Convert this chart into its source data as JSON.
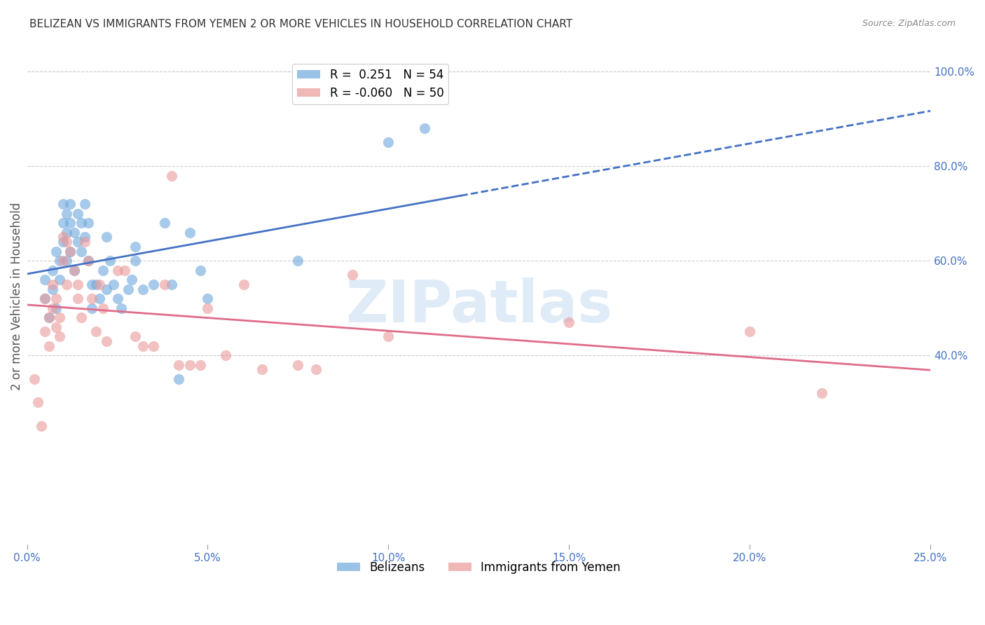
{
  "title": "BELIZEAN VS IMMIGRANTS FROM YEMEN 2 OR MORE VEHICLES IN HOUSEHOLD CORRELATION CHART",
  "source": "Source: ZipAtlas.com",
  "ylabel": "2 or more Vehicles in Household",
  "x_min": 0.0,
  "x_max": 0.25,
  "y_min": 0.0,
  "y_max": 1.05,
  "right_yticks": [
    0.4,
    0.6,
    0.8,
    1.0
  ],
  "right_yticklabels": [
    "40.0%",
    "60.0%",
    "80.0%",
    "100.0%"
  ],
  "xticks": [
    0.0,
    0.05,
    0.1,
    0.15,
    0.2,
    0.25
  ],
  "xticklabels": [
    "0.0%",
    "5.0%",
    "10.0%",
    "15.0%",
    "20.0%",
    "25.0%"
  ],
  "legend_R_blue": "0.251",
  "legend_N_blue": "54",
  "legend_R_pink": "-0.060",
  "legend_N_pink": "50",
  "blue_color": "#6fa8dc",
  "pink_color": "#ea9999",
  "trend_blue_color": "#4472c4",
  "trend_pink_color": "#e06c8a",
  "watermark": "ZIPatlas",
  "watermark_color": "#c0d8f0",
  "blue_scatter_x": [
    0.005,
    0.005,
    0.006,
    0.007,
    0.007,
    0.008,
    0.008,
    0.009,
    0.009,
    0.01,
    0.01,
    0.01,
    0.011,
    0.011,
    0.011,
    0.012,
    0.012,
    0.012,
    0.013,
    0.013,
    0.014,
    0.014,
    0.015,
    0.015,
    0.016,
    0.016,
    0.017,
    0.017,
    0.018,
    0.018,
    0.019,
    0.02,
    0.021,
    0.022,
    0.022,
    0.023,
    0.024,
    0.025,
    0.026,
    0.028,
    0.029,
    0.03,
    0.03,
    0.032,
    0.035,
    0.038,
    0.04,
    0.042,
    0.045,
    0.048,
    0.05,
    0.075,
    0.1,
    0.11
  ],
  "blue_scatter_y": [
    0.56,
    0.52,
    0.48,
    0.58,
    0.54,
    0.62,
    0.5,
    0.6,
    0.56,
    0.72,
    0.68,
    0.64,
    0.7,
    0.66,
    0.6,
    0.72,
    0.68,
    0.62,
    0.66,
    0.58,
    0.7,
    0.64,
    0.68,
    0.62,
    0.72,
    0.65,
    0.68,
    0.6,
    0.55,
    0.5,
    0.55,
    0.52,
    0.58,
    0.54,
    0.65,
    0.6,
    0.55,
    0.52,
    0.5,
    0.54,
    0.56,
    0.63,
    0.6,
    0.54,
    0.55,
    0.68,
    0.55,
    0.35,
    0.66,
    0.58,
    0.52,
    0.6,
    0.85,
    0.88
  ],
  "pink_scatter_x": [
    0.002,
    0.003,
    0.004,
    0.005,
    0.005,
    0.006,
    0.006,
    0.007,
    0.007,
    0.008,
    0.008,
    0.009,
    0.009,
    0.01,
    0.01,
    0.011,
    0.011,
    0.012,
    0.013,
    0.014,
    0.014,
    0.015,
    0.016,
    0.017,
    0.018,
    0.019,
    0.02,
    0.021,
    0.022,
    0.025,
    0.027,
    0.03,
    0.032,
    0.035,
    0.038,
    0.04,
    0.042,
    0.045,
    0.048,
    0.05,
    0.055,
    0.06,
    0.065,
    0.075,
    0.08,
    0.09,
    0.1,
    0.15,
    0.2,
    0.22
  ],
  "pink_scatter_y": [
    0.35,
    0.3,
    0.25,
    0.52,
    0.45,
    0.48,
    0.42,
    0.55,
    0.5,
    0.52,
    0.46,
    0.48,
    0.44,
    0.65,
    0.6,
    0.64,
    0.55,
    0.62,
    0.58,
    0.52,
    0.55,
    0.48,
    0.64,
    0.6,
    0.52,
    0.45,
    0.55,
    0.5,
    0.43,
    0.58,
    0.58,
    0.44,
    0.42,
    0.42,
    0.55,
    0.78,
    0.38,
    0.38,
    0.38,
    0.5,
    0.4,
    0.55,
    0.37,
    0.38,
    0.37,
    0.57,
    0.44,
    0.47,
    0.45,
    0.32
  ]
}
